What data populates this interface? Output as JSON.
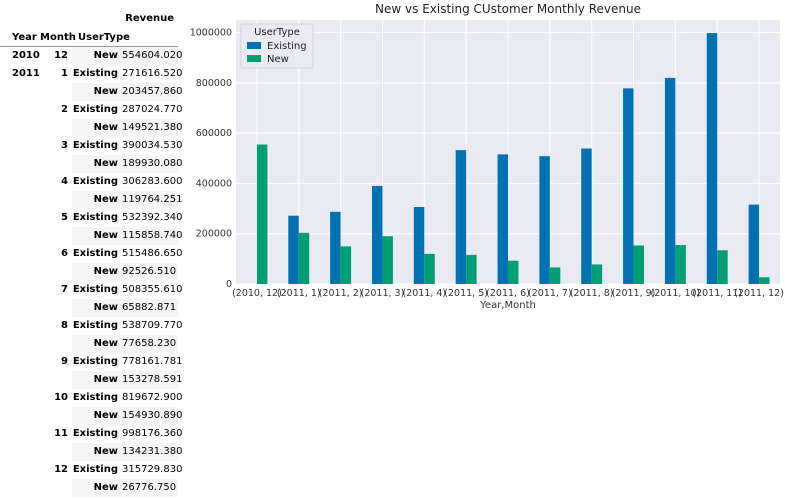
{
  "table": {
    "value_header": "Revenue",
    "index_headers": [
      "Year",
      "Month",
      "UserType"
    ],
    "rows": [
      {
        "year": "2010",
        "month": "12",
        "type": "New",
        "revenue": "554604.020"
      },
      {
        "year": "2011",
        "month": "1",
        "type": "Existing",
        "revenue": "271616.520"
      },
      {
        "year": "",
        "month": "",
        "type": "New",
        "revenue": "203457.860"
      },
      {
        "year": "",
        "month": "2",
        "type": "Existing",
        "revenue": "287024.770"
      },
      {
        "year": "",
        "month": "",
        "type": "New",
        "revenue": "149521.380"
      },
      {
        "year": "",
        "month": "3",
        "type": "Existing",
        "revenue": "390034.530"
      },
      {
        "year": "",
        "month": "",
        "type": "New",
        "revenue": "189930.080"
      },
      {
        "year": "",
        "month": "4",
        "type": "Existing",
        "revenue": "306283.600"
      },
      {
        "year": "",
        "month": "",
        "type": "New",
        "revenue": "119764.251"
      },
      {
        "year": "",
        "month": "5",
        "type": "Existing",
        "revenue": "532392.340"
      },
      {
        "year": "",
        "month": "",
        "type": "New",
        "revenue": "115858.740"
      },
      {
        "year": "",
        "month": "6",
        "type": "Existing",
        "revenue": "515486.650"
      },
      {
        "year": "",
        "month": "",
        "type": "New",
        "revenue": "92526.510"
      },
      {
        "year": "",
        "month": "7",
        "type": "Existing",
        "revenue": "508355.610"
      },
      {
        "year": "",
        "month": "",
        "type": "New",
        "revenue": "65882.871"
      },
      {
        "year": "",
        "month": "8",
        "type": "Existing",
        "revenue": "538709.770"
      },
      {
        "year": "",
        "month": "",
        "type": "New",
        "revenue": "77658.230"
      },
      {
        "year": "",
        "month": "9",
        "type": "Existing",
        "revenue": "778161.781"
      },
      {
        "year": "",
        "month": "",
        "type": "New",
        "revenue": "153278.591"
      },
      {
        "year": "",
        "month": "10",
        "type": "Existing",
        "revenue": "819672.900"
      },
      {
        "year": "",
        "month": "",
        "type": "New",
        "revenue": "154930.890"
      },
      {
        "year": "",
        "month": "11",
        "type": "Existing",
        "revenue": "998176.360"
      },
      {
        "year": "",
        "month": "",
        "type": "New",
        "revenue": "134231.380"
      },
      {
        "year": "",
        "month": "12",
        "type": "Existing",
        "revenue": "315729.830"
      },
      {
        "year": "",
        "month": "",
        "type": "New",
        "revenue": "26776.750"
      }
    ]
  },
  "chart_data": {
    "type": "bar",
    "title": "New vs Existing CUstomer Monthly Revenue",
    "xlabel": "Year,Month",
    "ylabel": "",
    "ylim": [
      0,
      1050000
    ],
    "yticks": [
      0,
      200000,
      400000,
      600000,
      800000,
      1000000
    ],
    "ytick_labels": [
      "0",
      "200000",
      "400000",
      "600000",
      "800000",
      "1000000"
    ],
    "grid": true,
    "legend_title": "UserType",
    "legend_position": "top-left",
    "categories": [
      "(2010, 12)",
      "(2011, 1)",
      "(2011, 2)",
      "(2011, 3)",
      "(2011, 4)",
      "(2011, 5)",
      "(2011, 6)",
      "(2011, 7)",
      "(2011, 8)",
      "(2011, 9)",
      "(2011, 10)",
      "(2011, 11)",
      "(2011, 12)"
    ],
    "series": [
      {
        "name": "Existing",
        "color": "#0072b2",
        "values": [
          0,
          271616.52,
          287024.77,
          390034.53,
          306283.6,
          532392.34,
          515486.65,
          508355.61,
          538709.77,
          778161.781,
          819672.9,
          998176.36,
          315729.83
        ]
      },
      {
        "name": "New",
        "color": "#009e73",
        "values": [
          554604.02,
          203457.86,
          149521.38,
          189930.08,
          119764.251,
          115858.74,
          92526.51,
          65882.871,
          77658.23,
          153278.591,
          154930.89,
          134231.38,
          26776.75
        ]
      }
    ],
    "background": "#eaeaf2"
  }
}
